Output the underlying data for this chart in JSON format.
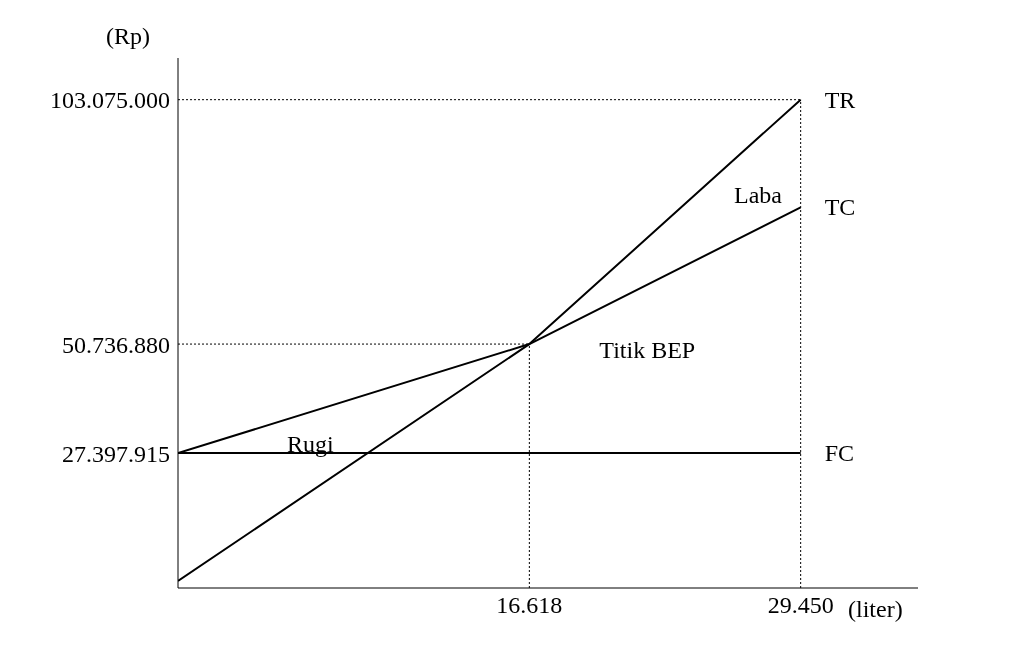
{
  "chart_data": {
    "type": "line",
    "ylabel": "(Rp)",
    "xlabel": "(liter)",
    "xlim": [
      0,
      35000
    ],
    "ylim": [
      -1500000,
      112000000
    ],
    "xticks": [
      {
        "value": 16618,
        "label": "16.618"
      },
      {
        "value": 29450,
        "label": "29.450"
      }
    ],
    "yticks": [
      {
        "value": 27397915,
        "label": "27.397.915"
      },
      {
        "value": 50736880,
        "label": "50.736.880"
      },
      {
        "value": 103075000,
        "label": "103.075.000"
      }
    ],
    "series": [
      {
        "name": "TR",
        "color": "#000000",
        "x": [
          0,
          16618,
          29450
        ],
        "values": [
          0,
          50736880,
          103075000
        ]
      },
      {
        "name": "TC",
        "color": "#000000",
        "x": [
          0,
          16618,
          29450
        ],
        "values": [
          27397915,
          50736880,
          80000000
        ]
      },
      {
        "name": "FC",
        "color": "#000000",
        "x": [
          0,
          29450
        ],
        "values": [
          27397915,
          27397915
        ]
      }
    ],
    "ref_lines": [
      {
        "axis": "y",
        "value": 103075000,
        "line_style": "dotted",
        "color": "#000000"
      },
      {
        "axis": "y",
        "value": 50736880,
        "line_style": "dotted",
        "color": "#000000"
      },
      {
        "axis": "x",
        "value": 16618,
        "line_style": "dotted",
        "color": "#000000"
      },
      {
        "axis": "x",
        "value": 29450,
        "line_style": "dotted",
        "color": "#000000"
      }
    ],
    "annotations": [
      "Rugi",
      "Laba",
      {
        "text": "Titik BEP",
        "x": 16618,
        "y": 50736880
      }
    ],
    "grid": false,
    "legend": false,
    "marker": "none",
    "line_style": "solid"
  }
}
